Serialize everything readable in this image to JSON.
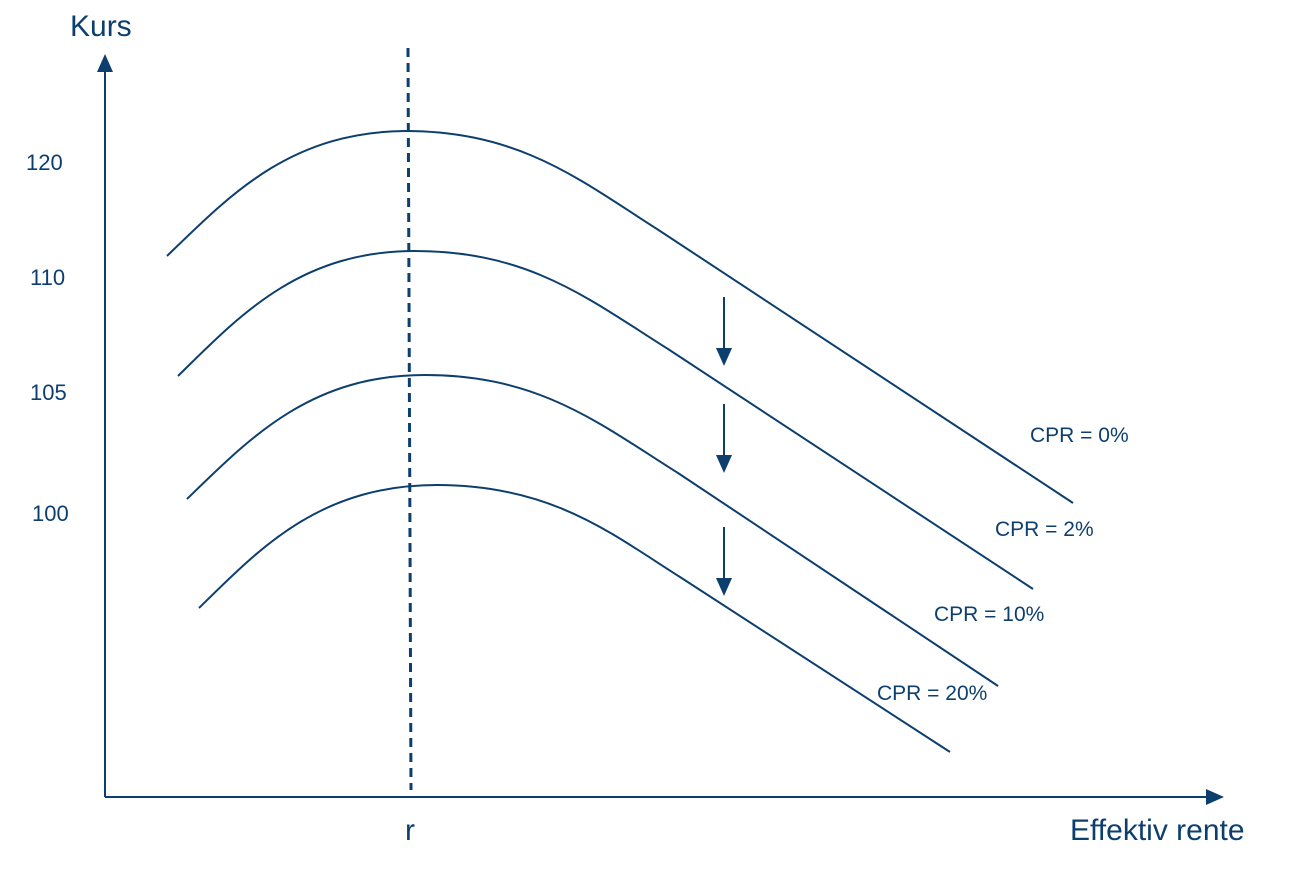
{
  "colors": {
    "primary": "#0d3f6e"
  },
  "axes": {
    "y_title": "Kurs",
    "x_title": "Effektiv rente",
    "x_marker_label": "r",
    "y_ticks": [
      "120",
      "110",
      "105",
      "100"
    ]
  },
  "curves": [
    {
      "label": "CPR = 0%"
    },
    {
      "label": "CPR = 2%"
    },
    {
      "label": "CPR = 10%"
    },
    {
      "label": "CPR = 20%"
    }
  ]
}
